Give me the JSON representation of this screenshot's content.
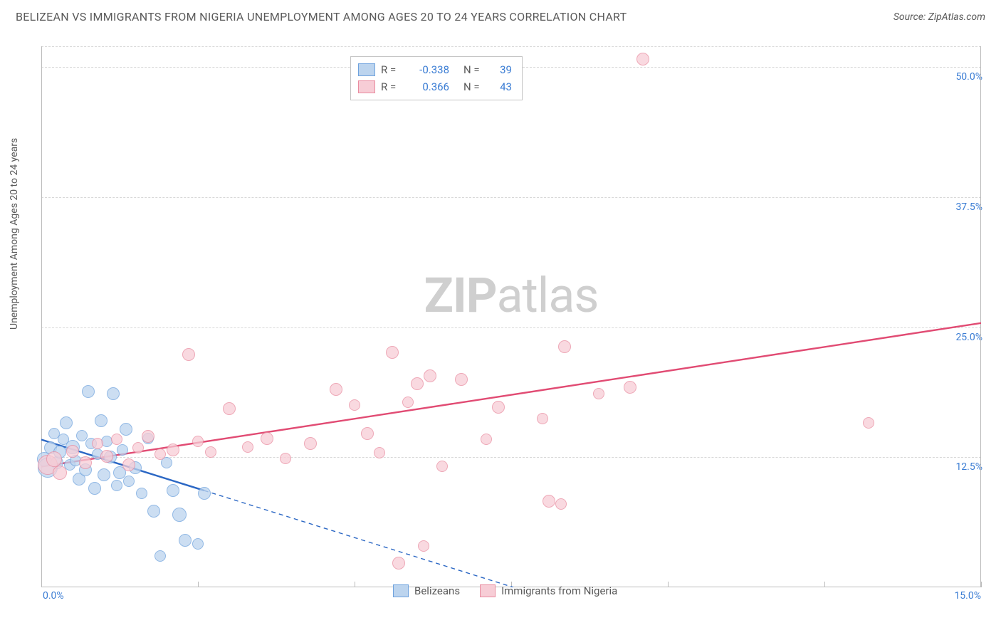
{
  "title": "BELIZEAN VS IMMIGRANTS FROM NIGERIA UNEMPLOYMENT AMONG AGES 20 TO 24 YEARS CORRELATION CHART",
  "source_prefix": "Source: ",
  "source_name": "ZipAtlas.com",
  "y_axis_label": "Unemployment Among Ages 20 to 24 years",
  "watermark_a": "ZIP",
  "watermark_b": "atlas",
  "chart": {
    "type": "scatter",
    "background_color": "#ffffff",
    "grid_color": "#d8d8d8",
    "axis_color": "#bbbbbb",
    "tick_label_color": "#3b7dd4",
    "xlim": [
      0,
      15
    ],
    "ylim": [
      0,
      52
    ],
    "x_ticks": [
      0,
      2.5,
      5,
      7.5,
      10,
      12.5,
      15
    ],
    "x_tick_labels": {
      "0": "0.0%",
      "15": "15.0%"
    },
    "y_grid": [
      12.5,
      25,
      37.5,
      50
    ],
    "y_tick_labels": {
      "12.5": "12.5%",
      "25": "25.0%",
      "37.5": "37.5%",
      "50": "50.0%"
    },
    "legend_top": [
      {
        "swatch_fill": "#bcd4ee",
        "swatch_border": "#6ea2dd",
        "r_label": "R =",
        "r_value": "-0.338",
        "n_label": "N =",
        "n_value": "39"
      },
      {
        "swatch_fill": "#f7cdd6",
        "swatch_border": "#e98ca0",
        "r_label": "R =",
        "r_value": "0.366",
        "n_label": "N =",
        "n_value": "43"
      }
    ],
    "legend_bottom": [
      {
        "swatch_fill": "#bcd4ee",
        "swatch_border": "#6ea2dd",
        "label": "Belizeans"
      },
      {
        "swatch_fill": "#f7cdd6",
        "swatch_border": "#e98ca0",
        "label": "Immigrants from Nigeria"
      }
    ],
    "series": [
      {
        "name": "Belizeans",
        "marker_fill": "#bcd4ee",
        "marker_border": "#6ea2dd",
        "marker_opacity": 0.75,
        "trend_color": "#2b67c4",
        "trend_width": 2.4,
        "trend_dash_extend": true,
        "trend": {
          "x1": 0,
          "y1": 14.2,
          "x2": 2.6,
          "y2": 9.3
        },
        "points": [
          {
            "x": 0.05,
            "y": 12.3,
            "r": 10
          },
          {
            "x": 0.1,
            "y": 11.5,
            "r": 14
          },
          {
            "x": 0.15,
            "y": 13.4,
            "r": 9
          },
          {
            "x": 0.2,
            "y": 14.8,
            "r": 8
          },
          {
            "x": 0.25,
            "y": 12.0,
            "r": 9
          },
          {
            "x": 0.3,
            "y": 13.0,
            "r": 9
          },
          {
            "x": 0.35,
            "y": 14.2,
            "r": 8
          },
          {
            "x": 0.4,
            "y": 15.8,
            "r": 9
          },
          {
            "x": 0.45,
            "y": 11.8,
            "r": 8
          },
          {
            "x": 0.5,
            "y": 13.5,
            "r": 10
          },
          {
            "x": 0.55,
            "y": 12.2,
            "r": 8
          },
          {
            "x": 0.6,
            "y": 10.4,
            "r": 9
          },
          {
            "x": 0.65,
            "y": 14.6,
            "r": 8
          },
          {
            "x": 0.7,
            "y": 11.3,
            "r": 9
          },
          {
            "x": 0.75,
            "y": 18.8,
            "r": 9
          },
          {
            "x": 0.8,
            "y": 13.8,
            "r": 8
          },
          {
            "x": 0.85,
            "y": 9.5,
            "r": 9
          },
          {
            "x": 0.9,
            "y": 12.8,
            "r": 8
          },
          {
            "x": 0.95,
            "y": 16.0,
            "r": 9
          },
          {
            "x": 1.0,
            "y": 10.8,
            "r": 9
          },
          {
            "x": 1.05,
            "y": 14.0,
            "r": 8
          },
          {
            "x": 1.1,
            "y": 12.5,
            "r": 9
          },
          {
            "x": 1.15,
            "y": 18.6,
            "r": 9
          },
          {
            "x": 1.2,
            "y": 9.8,
            "r": 8
          },
          {
            "x": 1.25,
            "y": 11.0,
            "r": 9
          },
          {
            "x": 1.3,
            "y": 13.2,
            "r": 8
          },
          {
            "x": 1.35,
            "y": 15.2,
            "r": 9
          },
          {
            "x": 1.4,
            "y": 10.2,
            "r": 8
          },
          {
            "x": 1.5,
            "y": 11.5,
            "r": 9
          },
          {
            "x": 1.6,
            "y": 9.0,
            "r": 8
          },
          {
            "x": 1.7,
            "y": 14.3,
            "r": 8
          },
          {
            "x": 1.8,
            "y": 7.3,
            "r": 9
          },
          {
            "x": 1.9,
            "y": 3.0,
            "r": 8
          },
          {
            "x": 2.0,
            "y": 12.0,
            "r": 8
          },
          {
            "x": 2.1,
            "y": 9.3,
            "r": 9
          },
          {
            "x": 2.2,
            "y": 7.0,
            "r": 10
          },
          {
            "x": 2.3,
            "y": 4.5,
            "r": 9
          },
          {
            "x": 2.5,
            "y": 4.2,
            "r": 8
          },
          {
            "x": 2.6,
            "y": 9.0,
            "r": 9
          }
        ]
      },
      {
        "name": "Immigrants from Nigeria",
        "marker_fill": "#f7cdd6",
        "marker_border": "#e98ca0",
        "marker_opacity": 0.75,
        "trend_color": "#e14b73",
        "trend_width": 2.4,
        "trend_dash_extend": false,
        "trend": {
          "x1": 0,
          "y1": 11.6,
          "x2": 15,
          "y2": 25.4
        },
        "points": [
          {
            "x": 0.1,
            "y": 11.8,
            "r": 14
          },
          {
            "x": 0.2,
            "y": 12.3,
            "r": 11
          },
          {
            "x": 0.3,
            "y": 11.0,
            "r": 10
          },
          {
            "x": 0.5,
            "y": 13.1,
            "r": 9
          },
          {
            "x": 0.7,
            "y": 12.0,
            "r": 9
          },
          {
            "x": 0.9,
            "y": 13.8,
            "r": 8
          },
          {
            "x": 1.05,
            "y": 12.6,
            "r": 9
          },
          {
            "x": 1.2,
            "y": 14.2,
            "r": 8
          },
          {
            "x": 1.4,
            "y": 11.8,
            "r": 9
          },
          {
            "x": 1.55,
            "y": 13.4,
            "r": 8
          },
          {
            "x": 1.7,
            "y": 14.5,
            "r": 9
          },
          {
            "x": 1.9,
            "y": 12.8,
            "r": 8
          },
          {
            "x": 2.1,
            "y": 13.2,
            "r": 9
          },
          {
            "x": 2.35,
            "y": 22.4,
            "r": 9
          },
          {
            "x": 2.5,
            "y": 14.0,
            "r": 8
          },
          {
            "x": 2.7,
            "y": 13.0,
            "r": 8
          },
          {
            "x": 3.0,
            "y": 17.2,
            "r": 9
          },
          {
            "x": 3.3,
            "y": 13.5,
            "r": 8
          },
          {
            "x": 3.6,
            "y": 14.3,
            "r": 9
          },
          {
            "x": 3.9,
            "y": 12.4,
            "r": 8
          },
          {
            "x": 4.3,
            "y": 13.8,
            "r": 9
          },
          {
            "x": 4.7,
            "y": 19.0,
            "r": 9
          },
          {
            "x": 5.0,
            "y": 17.5,
            "r": 8
          },
          {
            "x": 5.2,
            "y": 14.8,
            "r": 9
          },
          {
            "x": 5.4,
            "y": 12.9,
            "r": 8
          },
          {
            "x": 5.6,
            "y": 22.6,
            "r": 9
          },
          {
            "x": 5.7,
            "y": 2.3,
            "r": 9
          },
          {
            "x": 5.85,
            "y": 17.8,
            "r": 8
          },
          {
            "x": 6.0,
            "y": 19.6,
            "r": 9
          },
          {
            "x": 6.1,
            "y": 4.0,
            "r": 8
          },
          {
            "x": 6.2,
            "y": 20.3,
            "r": 9
          },
          {
            "x": 6.4,
            "y": 11.6,
            "r": 8
          },
          {
            "x": 6.7,
            "y": 20.0,
            "r": 9
          },
          {
            "x": 7.1,
            "y": 14.2,
            "r": 8
          },
          {
            "x": 7.3,
            "y": 17.3,
            "r": 9
          },
          {
            "x": 8.0,
            "y": 16.2,
            "r": 8
          },
          {
            "x": 8.1,
            "y": 8.3,
            "r": 9
          },
          {
            "x": 8.3,
            "y": 8.0,
            "r": 8
          },
          {
            "x": 8.35,
            "y": 23.1,
            "r": 9
          },
          {
            "x": 8.9,
            "y": 18.6,
            "r": 8
          },
          {
            "x": 9.4,
            "y": 19.2,
            "r": 9
          },
          {
            "x": 9.6,
            "y": 50.8,
            "r": 9
          },
          {
            "x": 13.2,
            "y": 15.8,
            "r": 8
          }
        ]
      }
    ]
  }
}
